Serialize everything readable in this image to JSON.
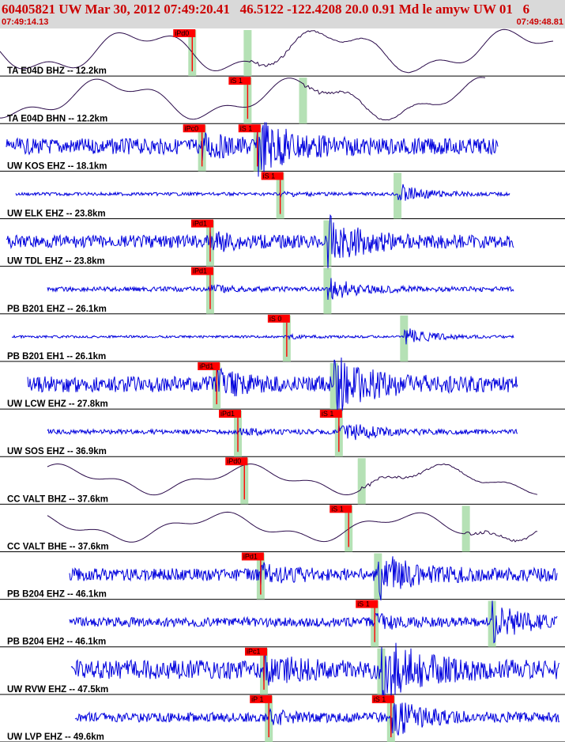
{
  "header": {
    "title": "60405821 UW Mar 30, 2012 07:49:20.41   46.5122 -122.4208 20.0 0.91 Md le amyw UW 01   6",
    "time_start": "07:49:14.13",
    "time_end": "07:49:48.81"
  },
  "colors": {
    "header_bg": "#d9d9d9",
    "header_text": "#cc0000",
    "pick_marker": "#ff0000",
    "shading": "#a8dca8",
    "trace_blue": "#0000dd",
    "trace_dark": "#2a0a4a"
  },
  "chart_data": {
    "type": "seismogram",
    "time_range": [
      "07:49:14.13",
      "07:49:48.81"
    ],
    "channels": [
      {
        "label": "TA E04D BHZ -- 12.2km",
        "color": "dark",
        "picks": [
          {
            "label": "iPd0",
            "t": 11.8
          }
        ]
      },
      {
        "label": "TA E04D BHN -- 12.2km",
        "color": "dark",
        "picks": [
          {
            "label": "iS 1",
            "t": 15.2
          }
        ]
      },
      {
        "label": "UW KOS EHZ -- 18.1km",
        "color": "blue",
        "picks": [
          {
            "label": "iPc0",
            "t": 12.4
          },
          {
            "label": "iS 1",
            "t": 15.8
          }
        ]
      },
      {
        "label": "UW ELK EHZ -- 23.8km",
        "color": "blue",
        "picks": [
          {
            "label": "iS 1",
            "t": 17.2
          }
        ]
      },
      {
        "label": "UW TDL EHZ -- 23.8km",
        "color": "blue",
        "picks": [
          {
            "label": "iPd1",
            "t": 12.9
          }
        ]
      },
      {
        "label": "PB B201 EHZ -- 26.1km",
        "color": "blue",
        "picks": [
          {
            "label": "iPd1",
            "t": 12.9
          }
        ]
      },
      {
        "label": "PB B201 EH1 -- 26.1km",
        "color": "blue",
        "picks": [
          {
            "label": "iS 0",
            "t": 17.6
          }
        ]
      },
      {
        "label": "UW LCW EHZ -- 27.8km",
        "color": "blue",
        "picks": [
          {
            "label": "iPd1",
            "t": 13.3
          }
        ]
      },
      {
        "label": "UW SOS EHZ -- 36.9km",
        "color": "blue",
        "picks": [
          {
            "label": "iPd1",
            "t": 14.6
          },
          {
            "label": "iS 1",
            "t": 20.8
          }
        ]
      },
      {
        "label": "CC VALT BHZ -- 37.6km",
        "color": "dark",
        "picks": [
          {
            "label": "iPd0",
            "t": 15.0
          }
        ]
      },
      {
        "label": "CC VALT BHE -- 37.6km",
        "color": "dark",
        "picks": [
          {
            "label": "iS 1",
            "t": 21.4
          }
        ]
      },
      {
        "label": "PB B204 EHZ -- 46.1km",
        "color": "blue",
        "picks": [
          {
            "label": "iPd1",
            "t": 16.0
          }
        ]
      },
      {
        "label": "PB B204 EH2 -- 46.1km",
        "color": "blue",
        "picks": [
          {
            "label": "iS 1",
            "t": 23.0
          }
        ]
      },
      {
        "label": "UW RVW EHZ -- 47.5km",
        "color": "blue",
        "picks": [
          {
            "label": "iPc1",
            "t": 16.2
          }
        ]
      },
      {
        "label": "UW LVP EHZ -- 49.6km",
        "color": "blue",
        "picks": [
          {
            "label": "iP 1",
            "t": 16.5
          },
          {
            "label": "iS 1",
            "t": 24.0
          }
        ]
      }
    ]
  }
}
